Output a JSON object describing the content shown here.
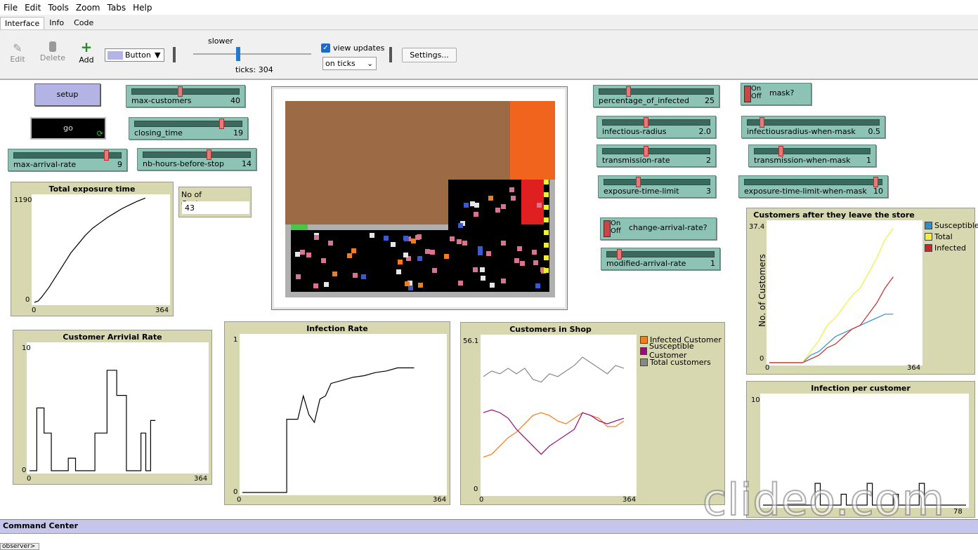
{
  "menu": [
    "File",
    "Edit",
    "Tools",
    "Zoom",
    "Tabs",
    "Help"
  ],
  "tabs": [
    "Interface",
    "Info",
    "Code"
  ],
  "toolbar": {
    "edit": "Edit",
    "delete": "Delete",
    "add": "Add",
    "widget_type": "Button",
    "speed_label": "slower",
    "ticks_text": "ticks: 304",
    "view_updates": "view updates",
    "update_mode": "on ticks",
    "settings": "Settings..."
  },
  "buttons": {
    "setup": "setup",
    "go": "go"
  },
  "sliders": {
    "max_customers": {
      "label": "max-customers",
      "value": "40",
      "fraction": 0.45
    },
    "closing_time": {
      "label": "closing_time",
      "value": "19",
      "fraction": 0.82
    },
    "max_arrival_rate": {
      "label": "max-arrival-rate",
      "value": "9",
      "fraction": 0.88
    },
    "nb_hours": {
      "label": "nb-hours-before-stop",
      "value": "14",
      "fraction": 0.62
    },
    "pct_infected": {
      "label": "percentage_of_infected",
      "value": "25",
      "fraction": 0.25
    },
    "infectious_radius": {
      "label": "infectious-radius",
      "value": "2.0",
      "fraction": 0.4
    },
    "transmission_rate": {
      "label": "transmission-rate",
      "value": "2",
      "fraction": 0.4
    },
    "exposure_limit": {
      "label": "exposure-time-limit",
      "value": "3",
      "fraction": 0.32
    },
    "modified_arrival": {
      "label": "modified-arrival-rate",
      "value": "1",
      "fraction": 0.1
    },
    "radius_mask": {
      "label": "infectiousradius-when-mask",
      "value": "0.5",
      "fraction": 0.1
    },
    "transmission_mask": {
      "label": "transmission-when-mask",
      "value": "1",
      "fraction": 0.22
    },
    "exposure_mask": {
      "label": "exposure-time-limit-when-mask",
      "value": "10",
      "fraction": 0.97
    }
  },
  "switches": {
    "mask": {
      "on": "On",
      "off": "Off",
      "label": "mask?"
    },
    "change_rate": {
      "on": "On",
      "off": "Off",
      "label": "change-arrival-rate?"
    }
  },
  "monitor": {
    "label": "No of Customers...",
    "value": "43"
  },
  "command_center": {
    "title": "Command Center",
    "prompt": "observer>"
  },
  "watermark": "clideo.com",
  "colors": {
    "plot_bg": "#d7d7b0",
    "widget": "#8dc3b5",
    "button": "#b3b3e6"
  },
  "chart_data": [
    {
      "id": "exposure",
      "type": "line",
      "title": "Total exposure time",
      "xlabel": "",
      "ylabel": "",
      "xlim": [
        0,
        364
      ],
      "ylim": [
        0,
        1190
      ],
      "xticks": [
        "0",
        "364"
      ],
      "yticks": [
        "0",
        "1190"
      ],
      "series": [
        {
          "name": "exposure",
          "color": "#000",
          "x": [
            0,
            10,
            20,
            40,
            60,
            80,
            100,
            120,
            140,
            160,
            180,
            200,
            220,
            240,
            260,
            280,
            304
          ],
          "y": [
            0,
            15,
            60,
            170,
            300,
            430,
            560,
            660,
            760,
            840,
            900,
            960,
            1010,
            1060,
            1100,
            1140,
            1180
          ]
        }
      ]
    },
    {
      "id": "arrival",
      "type": "line",
      "title": "Customer Arrivial Rate",
      "xlabel": "",
      "ylabel": "",
      "xlim": [
        0,
        364
      ],
      "ylim": [
        0,
        10
      ],
      "xticks": [
        "0",
        "364"
      ],
      "yticks": [
        "0",
        "10"
      ],
      "series": [
        {
          "name": "arrival",
          "color": "#000",
          "x": [
            0,
            15,
            15,
            30,
            30,
            45,
            45,
            52,
            52,
            80,
            80,
            95,
            95,
            100,
            100,
            135,
            135,
            160,
            160,
            180,
            180,
            200,
            200,
            230,
            230,
            240,
            240,
            250,
            250,
            260
          ],
          "y": [
            0,
            0,
            5,
            5,
            3,
            3,
            0,
            0,
            0,
            0,
            1,
            1,
            0,
            0,
            0,
            0,
            3,
            3,
            8,
            8,
            6,
            6,
            0,
            0,
            3,
            3,
            0,
            0,
            4,
            4
          ]
        }
      ]
    },
    {
      "id": "infection",
      "type": "line",
      "title": "Infection Rate",
      "xlabel": "",
      "ylabel": "",
      "xlim": [
        0,
        364
      ],
      "ylim": [
        0,
        1
      ],
      "xticks": [
        "0",
        "364"
      ],
      "yticks": [
        "0",
        "1"
      ],
      "series": [
        {
          "name": "infection",
          "color": "#000",
          "x": [
            0,
            80,
            80,
            100,
            110,
            120,
            130,
            140,
            150,
            160,
            180,
            200,
            220,
            240,
            260,
            280,
            300,
            310
          ],
          "y": [
            0,
            0,
            0.47,
            0.47,
            0.62,
            0.5,
            0.45,
            0.6,
            0.62,
            0.7,
            0.72,
            0.74,
            0.75,
            0.77,
            0.78,
            0.8,
            0.8,
            0.8
          ]
        }
      ]
    },
    {
      "id": "inshop",
      "type": "line",
      "title": "Customers in Shop",
      "xlabel": "",
      "ylabel": "",
      "xlim": [
        0,
        364
      ],
      "ylim": [
        0,
        56.1
      ],
      "xticks": [
        "0",
        "364"
      ],
      "yticks": [
        "0",
        "56.1"
      ],
      "legend": [
        "Infected Customer",
        "Susceptible Customer",
        "Total customers"
      ],
      "series": [
        {
          "name": "Infected Customer",
          "color": "#f07d1e",
          "x": [
            0,
            20,
            40,
            60,
            80,
            100,
            120,
            140,
            160,
            180,
            200,
            220,
            240,
            260,
            280,
            300,
            320,
            340
          ],
          "y": [
            13,
            14,
            17,
            20,
            22,
            25,
            28,
            29,
            28,
            26,
            25,
            27,
            29,
            28,
            27,
            24,
            24,
            26
          ]
        },
        {
          "name": "Susceptible Customer",
          "color": "#9c0a7a",
          "x": [
            0,
            20,
            40,
            60,
            80,
            100,
            120,
            140,
            160,
            180,
            200,
            220,
            240,
            260,
            280,
            300,
            320,
            340
          ],
          "y": [
            29,
            30,
            29,
            27,
            23,
            20,
            17,
            14,
            17,
            19,
            21,
            23,
            29,
            28,
            26,
            25,
            26,
            27
          ]
        },
        {
          "name": "Total customers",
          "color": "#888",
          "x": [
            0,
            20,
            40,
            60,
            80,
            100,
            120,
            140,
            160,
            180,
            200,
            220,
            240,
            260,
            280,
            300,
            320,
            340
          ],
          "y": [
            42,
            44,
            43,
            45,
            43,
            45,
            41,
            40,
            43,
            42,
            44,
            46,
            49,
            47,
            45,
            43,
            46,
            45
          ]
        }
      ]
    },
    {
      "id": "leave",
      "type": "line",
      "title": "Customers after they leave the store",
      "xlabel": "",
      "ylabel": "No. of Customers",
      "xlim": [
        0,
        364
      ],
      "ylim": [
        0,
        37.4
      ],
      "xticks": [
        "0",
        "364"
      ],
      "yticks": [
        "0",
        "37.4"
      ],
      "legend": [
        "Susceptible",
        "Total",
        "Infected"
      ],
      "series": [
        {
          "name": "Susceptible",
          "color": "#2f90c8",
          "x": [
            0,
            80,
            100,
            120,
            140,
            160,
            180,
            200,
            220,
            240,
            260,
            280,
            300
          ],
          "y": [
            0,
            0,
            2,
            3,
            5,
            7,
            8,
            9,
            10,
            11,
            12,
            13,
            13
          ]
        },
        {
          "name": "Total",
          "color": "#f0f03c",
          "x": [
            0,
            80,
            100,
            120,
            140,
            160,
            180,
            200,
            220,
            240,
            260,
            280,
            300
          ],
          "y": [
            0,
            0,
            3,
            6,
            10,
            12,
            15,
            18,
            20,
            24,
            28,
            33,
            36
          ]
        },
        {
          "name": "Infected",
          "color": "#c82828",
          "x": [
            0,
            80,
            100,
            120,
            140,
            160,
            180,
            200,
            220,
            240,
            260,
            280,
            300
          ],
          "y": [
            0,
            0,
            1,
            2,
            4,
            5,
            7,
            9,
            10,
            13,
            16,
            20,
            23
          ]
        }
      ]
    },
    {
      "id": "percust",
      "type": "line",
      "title": "Infection per customer",
      "xlabel": "",
      "ylabel": "",
      "xlim": [
        0,
        78
      ],
      "ylim": [
        0,
        10
      ],
      "xticks": [
        "0",
        "78"
      ],
      "yticks": [
        "0",
        "10"
      ],
      "series": [
        {
          "name": "per",
          "color": "#000",
          "x": [
            0,
            20,
            20,
            22,
            22,
            30,
            30,
            32,
            32,
            40,
            40,
            42,
            42,
            50,
            50,
            52,
            52,
            60,
            60,
            62,
            62,
            78
          ],
          "y": [
            0,
            0,
            2,
            2,
            0,
            0,
            1,
            1,
            0,
            0,
            2,
            2,
            0,
            0,
            1,
            1,
            0,
            0,
            2,
            2,
            0,
            0
          ]
        }
      ]
    }
  ]
}
